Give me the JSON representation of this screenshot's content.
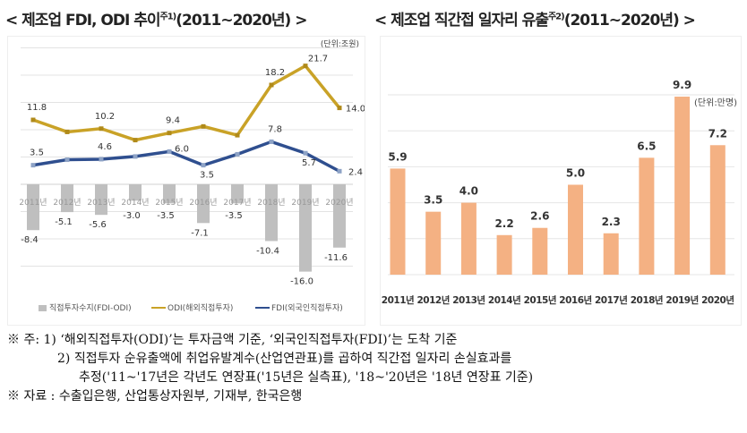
{
  "left_title": {
    "text": "< 제조업 FDI, ODI 추이",
    "sup": "주1)",
    "tail": "(2011~2020년) >"
  },
  "right_title": {
    "text": "< 제조업 직간접 일자리 유출",
    "sup": "주2)",
    "tail": "(2011~2020년) >"
  },
  "chart_data": [
    {
      "type": "bar+line",
      "unit": "(단위:조원)",
      "categories": [
        "2011년",
        "2012년",
        "2013년",
        "2014년",
        "2015년",
        "2016년",
        "2017년",
        "2018년",
        "2019년",
        "2020년"
      ],
      "series": [
        {
          "name": "직접투자수지(FDI-ODI)",
          "type": "bar",
          "color": "#bfbfbf",
          "values": [
            -8.4,
            -5.1,
            -5.6,
            -3.0,
            -3.5,
            -7.1,
            -3.5,
            -10.4,
            -16.0,
            -11.6
          ],
          "labels": [
            "-8.4",
            "-5.1",
            "-5.6",
            "-3.0",
            "-3.5",
            "-7.1",
            "-3.5",
            "-10.4",
            "-16.0",
            "-11.6"
          ]
        },
        {
          "name": "ODI(해외직접투자)",
          "type": "line",
          "color": "#c9a227",
          "values": [
            11.8,
            9.6,
            10.2,
            8.1,
            9.4,
            10.6,
            9.0,
            18.2,
            21.7,
            14.0
          ],
          "labels": [
            "11.8",
            "",
            "10.2",
            "",
            "9.4",
            "",
            "",
            "18.2",
            "21.7",
            "14.0"
          ]
        },
        {
          "name": "FDI(외국인직접투자)",
          "type": "line",
          "color": "#2f4f8f",
          "values": [
            3.5,
            4.5,
            4.6,
            5.1,
            6.0,
            3.5,
            5.5,
            7.8,
            5.7,
            2.4
          ],
          "labels": [
            "3.5",
            "",
            "4.6",
            "",
            "6.0",
            "3.5",
            "",
            "7.8",
            "5.7",
            "2.4"
          ]
        }
      ],
      "ylim": [
        -17,
        25
      ],
      "grid": true,
      "legend": "bottom"
    },
    {
      "type": "bar",
      "unit": "(단위:만명)",
      "categories": [
        "2011년",
        "2012년",
        "2013년",
        "2014년",
        "2015년",
        "2016년",
        "2017년",
        "2018년",
        "2019년",
        "2020년"
      ],
      "values": [
        5.9,
        3.5,
        4.0,
        2.2,
        2.6,
        5.0,
        2.3,
        6.5,
        9.9,
        7.2
      ],
      "color": "#f4b183",
      "ylim": [
        0,
        12
      ],
      "grid": true
    }
  ],
  "notes": [
    "※ 주: 1) ‘해외직접투자(ODI)’는 투자금액 기준, ‘외국인직접투자(FDI)’는 도착 기준",
    "2) 직접투자 순유출액에 취업유발계수(산업연관표)를 곱하여 직간접 일자리 손실효과를",
    "추정('11~'17년은 각년도 연장표('15년은 실측표), '18~'20년은 '18년 연장표 기준)",
    "※ 자료 : 수출입은행, 산업통상자원부, 기재부, 한국은행"
  ]
}
